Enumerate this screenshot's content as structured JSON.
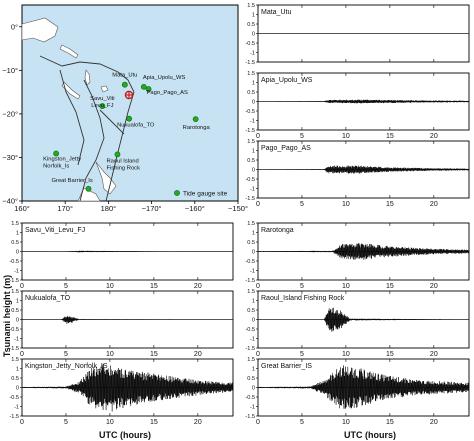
{
  "map": {
    "x_ticks": [
      "160°",
      "170°",
      "180°",
      "−170°",
      "−160°",
      "−150°"
    ],
    "y_ticks": [
      "0°",
      "−10°",
      "−20°",
      "−30°",
      "−40°"
    ],
    "legend_label": "Tide gauge site",
    "station_color": "#22aa22",
    "ocean_color": "#c7e3f3",
    "land_color": "#ffffff",
    "epicenter_color": "#cc1111",
    "stations": [
      {
        "label": "Mata_Utu",
        "lon": 183.8,
        "lat": -13.3
      },
      {
        "label": "Apia_Upolu_WS",
        "lon": 188.2,
        "lat": -13.8
      },
      {
        "label": "Pago_Pago_AS",
        "lon": 189.3,
        "lat": -14.3
      },
      {
        "label": "Savu_Viti\nLevu_FJ",
        "lon": 178.6,
        "lat": -18.2
      },
      {
        "label": "Nukualofa_TO",
        "lon": 184.8,
        "lat": -21.1
      },
      {
        "label": "Rarotonga",
        "lon": 200.2,
        "lat": -21.2
      },
      {
        "label": "Kingston_Jetty\nNorfolk_Is",
        "lon": 167.9,
        "lat": -29.1
      },
      {
        "label": "Raoul Island\nFishing Rock",
        "lon": 182.1,
        "lat": -29.3
      },
      {
        "label": "Great Barrier_Is",
        "lon": 175.4,
        "lat": -37.2
      }
    ]
  },
  "chart_data": {
    "type": "line",
    "ylabel": "Tsunami height (m)",
    "xlabel": "UTC (hours)",
    "xlim": [
      0,
      24
    ],
    "ylim": [
      -1.5,
      1.5
    ],
    "x_ticks": [
      0,
      5,
      10,
      15,
      20
    ],
    "y_ticks": [
      "1.5",
      "1",
      "0.5",
      "0",
      "-0.5",
      "-1",
      "-1.5"
    ],
    "panels": [
      {
        "name": "Mata_Utu",
        "envelope": [
          [
            0,
            0
          ],
          [
            24,
            0
          ]
        ]
      },
      {
        "name": "Apia_Upolu_WS",
        "envelope": [
          [
            0,
            0.01
          ],
          [
            7.5,
            0.02
          ],
          [
            8,
            0.09
          ],
          [
            12,
            0.1
          ],
          [
            18,
            0.06
          ],
          [
            24,
            0.04
          ]
        ]
      },
      {
        "name": "Pago_Pago_AS",
        "envelope": [
          [
            0,
            0.01
          ],
          [
            7.5,
            0.02
          ],
          [
            8,
            0.2
          ],
          [
            11,
            0.22
          ],
          [
            15,
            0.12
          ],
          [
            20,
            0.07
          ],
          [
            24,
            0.05
          ]
        ]
      },
      {
        "name": "Savu_Viti_Levu_FJ",
        "envelope": [
          [
            0,
            0.005
          ],
          [
            5,
            0.01
          ],
          [
            6.5,
            0.04
          ],
          [
            10,
            0.03
          ],
          [
            16,
            0.01
          ],
          [
            24,
            0.005
          ]
        ]
      },
      {
        "name": "Rarotonga",
        "envelope": [
          [
            0,
            0.02
          ],
          [
            8.5,
            0.04
          ],
          [
            9.5,
            0.4
          ],
          [
            12,
            0.45
          ],
          [
            15,
            0.28
          ],
          [
            20,
            0.15
          ],
          [
            24,
            0.1
          ]
        ]
      },
      {
        "name": "Nukualofa_TO",
        "envelope": [
          [
            0,
            0.005
          ],
          [
            4.5,
            0.01
          ],
          [
            5.1,
            0.25
          ],
          [
            5.8,
            0.15
          ],
          [
            6.5,
            0.02
          ],
          [
            24,
            0.005
          ]
        ]
      },
      {
        "name": "Raoul_Island Fishing Rock",
        "envelope": [
          [
            0,
            0.005
          ],
          [
            7.5,
            0.01
          ],
          [
            8.2,
            0.7
          ],
          [
            9.5,
            0.45
          ],
          [
            10.5,
            0.05
          ],
          [
            24,
            0.005
          ]
        ]
      },
      {
        "name": "Kingston_Jetty_Norfolk_IS",
        "envelope": [
          [
            0,
            0.03
          ],
          [
            5,
            0.05
          ],
          [
            6.5,
            0.3
          ],
          [
            8,
            1.1
          ],
          [
            10,
            1.3
          ],
          [
            13,
            0.9
          ],
          [
            17,
            0.6
          ],
          [
            21,
            0.35
          ],
          [
            24,
            0.25
          ]
        ]
      },
      {
        "name": "Great Barrier_IS",
        "envelope": [
          [
            0,
            0.03
          ],
          [
            6,
            0.05
          ],
          [
            7.5,
            0.4
          ],
          [
            9.5,
            1.2
          ],
          [
            11,
            1.1
          ],
          [
            14,
            0.7
          ],
          [
            18,
            0.4
          ],
          [
            24,
            0.25
          ]
        ]
      }
    ]
  }
}
